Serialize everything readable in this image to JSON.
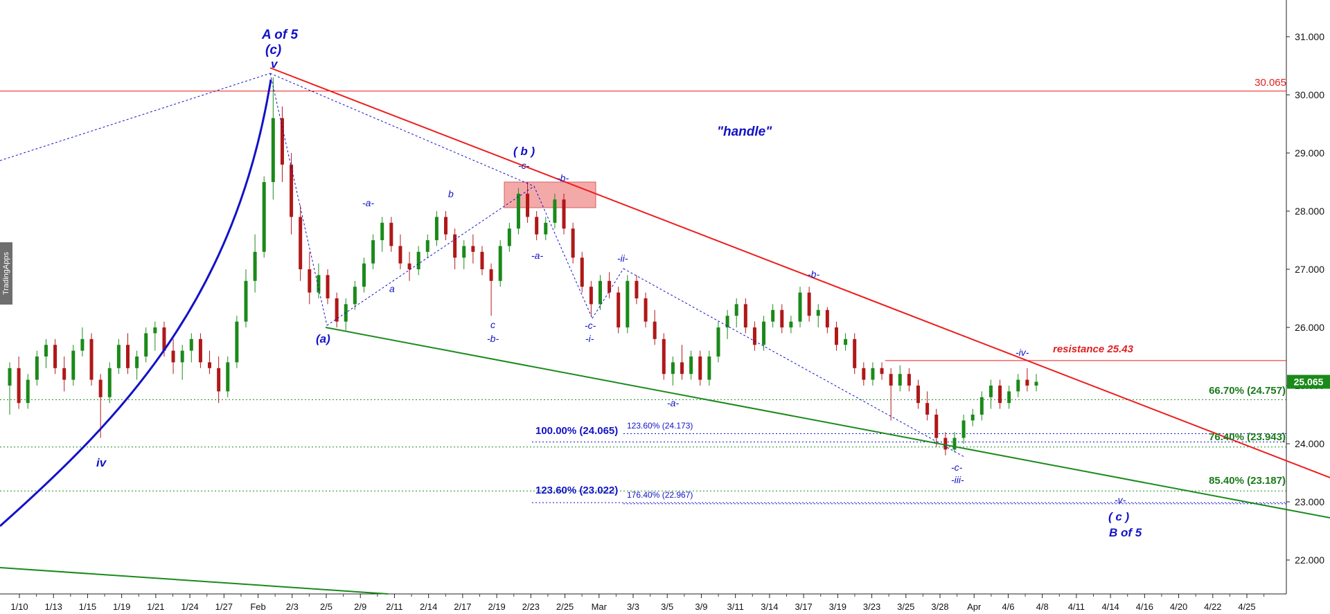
{
  "chart_data": {
    "type": "candlestick",
    "y_ticks": [
      "31.000",
      "30.000",
      "29.000",
      "28.000",
      "27.000",
      "26.000",
      "25.000",
      "24.000",
      "23.000",
      "22.000"
    ],
    "ylim": [
      21.4,
      31.7
    ],
    "x_ticks": [
      "1/10",
      "1/13",
      "1/15",
      "1/19",
      "1/21",
      "1/24",
      "1/27",
      "Feb",
      "2/3",
      "2/5",
      "2/9",
      "2/11",
      "2/14",
      "2/17",
      "2/19",
      "2/23",
      "2/25",
      "Mar",
      "3/3",
      "3/5",
      "3/9",
      "3/11",
      "3/14",
      "3/17",
      "3/19",
      "3/23",
      "3/25",
      "3/28",
      "Apr",
      "4/6",
      "4/8",
      "4/11",
      "4/14",
      "4/16",
      "4/20",
      "4/22",
      "4/25"
    ],
    "last_price": "25.065",
    "last_price_value": 25.065,
    "candles": [
      {
        "o": 25.0,
        "h": 25.4,
        "l": 24.5,
        "c": 25.3
      },
      {
        "o": 25.3,
        "h": 25.5,
        "l": 24.6,
        "c": 24.7
      },
      {
        "o": 24.7,
        "h": 25.2,
        "l": 24.6,
        "c": 25.1
      },
      {
        "o": 25.1,
        "h": 25.6,
        "l": 25.0,
        "c": 25.5
      },
      {
        "o": 25.5,
        "h": 25.8,
        "l": 25.3,
        "c": 25.7
      },
      {
        "o": 25.7,
        "h": 25.8,
        "l": 25.2,
        "c": 25.3
      },
      {
        "o": 25.3,
        "h": 25.5,
        "l": 24.9,
        "c": 25.1
      },
      {
        "o": 25.1,
        "h": 25.7,
        "l": 25.0,
        "c": 25.6
      },
      {
        "o": 25.6,
        "h": 26.0,
        "l": 25.5,
        "c": 25.8
      },
      {
        "o": 25.8,
        "h": 25.9,
        "l": 25.0,
        "c": 25.1
      },
      {
        "o": 25.1,
        "h": 25.2,
        "l": 24.1,
        "c": 24.8
      },
      {
        "o": 24.8,
        "h": 25.4,
        "l": 24.7,
        "c": 25.3
      },
      {
        "o": 25.3,
        "h": 25.8,
        "l": 25.2,
        "c": 25.7
      },
      {
        "o": 25.7,
        "h": 25.9,
        "l": 25.2,
        "c": 25.3
      },
      {
        "o": 25.3,
        "h": 25.6,
        "l": 25.1,
        "c": 25.5
      },
      {
        "o": 25.5,
        "h": 26.0,
        "l": 25.4,
        "c": 25.9
      },
      {
        "o": 25.9,
        "h": 26.1,
        "l": 25.6,
        "c": 26.0
      },
      {
        "o": 26.0,
        "h": 26.1,
        "l": 25.5,
        "c": 25.6
      },
      {
        "o": 25.6,
        "h": 25.8,
        "l": 25.2,
        "c": 25.4
      },
      {
        "o": 25.4,
        "h": 25.7,
        "l": 25.1,
        "c": 25.6
      },
      {
        "o": 25.6,
        "h": 25.9,
        "l": 25.4,
        "c": 25.8
      },
      {
        "o": 25.8,
        "h": 25.9,
        "l": 25.3,
        "c": 25.4
      },
      {
        "o": 25.4,
        "h": 25.6,
        "l": 25.2,
        "c": 25.3
      },
      {
        "o": 25.3,
        "h": 25.5,
        "l": 24.7,
        "c": 24.9
      },
      {
        "o": 24.9,
        "h": 25.5,
        "l": 24.8,
        "c": 25.4
      },
      {
        "o": 25.4,
        "h": 26.2,
        "l": 25.3,
        "c": 26.1
      },
      {
        "o": 26.1,
        "h": 27.0,
        "l": 26.0,
        "c": 26.8
      },
      {
        "o": 26.8,
        "h": 27.6,
        "l": 26.6,
        "c": 27.3
      },
      {
        "o": 27.3,
        "h": 28.6,
        "l": 27.2,
        "c": 28.5
      },
      {
        "o": 28.5,
        "h": 30.3,
        "l": 28.2,
        "c": 29.6
      },
      {
        "o": 29.6,
        "h": 29.8,
        "l": 28.5,
        "c": 28.8
      },
      {
        "o": 28.8,
        "h": 29.0,
        "l": 27.6,
        "c": 27.9
      },
      {
        "o": 27.9,
        "h": 28.1,
        "l": 26.8,
        "c": 27.0
      },
      {
        "o": 27.0,
        "h": 27.3,
        "l": 26.4,
        "c": 26.6
      },
      {
        "o": 26.6,
        "h": 27.1,
        "l": 26.5,
        "c": 26.9
      },
      {
        "o": 26.9,
        "h": 27.0,
        "l": 26.4,
        "c": 26.5
      },
      {
        "o": 26.5,
        "h": 26.6,
        "l": 26.0,
        "c": 26.1
      },
      {
        "o": 26.1,
        "h": 26.5,
        "l": 25.95,
        "c": 26.4
      },
      {
        "o": 26.4,
        "h": 26.8,
        "l": 26.3,
        "c": 26.7
      },
      {
        "o": 26.7,
        "h": 27.2,
        "l": 26.6,
        "c": 27.1
      },
      {
        "o": 27.1,
        "h": 27.6,
        "l": 27.0,
        "c": 27.5
      },
      {
        "o": 27.5,
        "h": 27.9,
        "l": 27.3,
        "c": 27.8
      },
      {
        "o": 27.8,
        "h": 27.9,
        "l": 27.3,
        "c": 27.4
      },
      {
        "o": 27.4,
        "h": 27.6,
        "l": 27.0,
        "c": 27.1
      },
      {
        "o": 27.1,
        "h": 27.3,
        "l": 26.8,
        "c": 27.0
      },
      {
        "o": 27.0,
        "h": 27.4,
        "l": 26.9,
        "c": 27.3
      },
      {
        "o": 27.3,
        "h": 27.6,
        "l": 27.2,
        "c": 27.5
      },
      {
        "o": 27.5,
        "h": 28.0,
        "l": 27.4,
        "c": 27.9
      },
      {
        "o": 27.9,
        "h": 28.0,
        "l": 27.5,
        "c": 27.6
      },
      {
        "o": 27.6,
        "h": 27.7,
        "l": 27.0,
        "c": 27.2
      },
      {
        "o": 27.2,
        "h": 27.5,
        "l": 27.0,
        "c": 27.4
      },
      {
        "o": 27.4,
        "h": 27.6,
        "l": 27.1,
        "c": 27.3
      },
      {
        "o": 27.3,
        "h": 27.4,
        "l": 26.9,
        "c": 27.0
      },
      {
        "o": 27.0,
        "h": 27.1,
        "l": 26.2,
        "c": 26.8
      },
      {
        "o": 26.8,
        "h": 27.5,
        "l": 26.7,
        "c": 27.4
      },
      {
        "o": 27.4,
        "h": 27.8,
        "l": 27.3,
        "c": 27.7
      },
      {
        "o": 27.7,
        "h": 28.4,
        "l": 27.6,
        "c": 28.3
      },
      {
        "o": 28.3,
        "h": 28.5,
        "l": 27.8,
        "c": 27.9
      },
      {
        "o": 27.9,
        "h": 28.0,
        "l": 27.5,
        "c": 27.6
      },
      {
        "o": 27.6,
        "h": 27.9,
        "l": 27.5,
        "c": 27.8
      },
      {
        "o": 27.8,
        "h": 28.3,
        "l": 27.7,
        "c": 28.2
      },
      {
        "o": 28.2,
        "h": 28.3,
        "l": 27.6,
        "c": 27.7
      },
      {
        "o": 27.7,
        "h": 27.8,
        "l": 27.1,
        "c": 27.2
      },
      {
        "o": 27.2,
        "h": 27.3,
        "l": 26.6,
        "c": 26.7
      },
      {
        "o": 26.7,
        "h": 26.8,
        "l": 26.2,
        "c": 26.4
      },
      {
        "o": 26.4,
        "h": 26.9,
        "l": 26.3,
        "c": 26.8
      },
      {
        "o": 26.8,
        "h": 26.95,
        "l": 26.5,
        "c": 26.6
      },
      {
        "o": 26.6,
        "h": 26.7,
        "l": 25.9,
        "c": 26.0
      },
      {
        "o": 26.0,
        "h": 26.9,
        "l": 25.9,
        "c": 26.8
      },
      {
        "o": 26.8,
        "h": 26.9,
        "l": 26.4,
        "c": 26.5
      },
      {
        "o": 26.5,
        "h": 26.6,
        "l": 26.0,
        "c": 26.1
      },
      {
        "o": 26.1,
        "h": 26.3,
        "l": 25.7,
        "c": 25.8
      },
      {
        "o": 25.8,
        "h": 25.9,
        "l": 25.1,
        "c": 25.2
      },
      {
        "o": 25.2,
        "h": 25.5,
        "l": 25.0,
        "c": 25.4
      },
      {
        "o": 25.4,
        "h": 25.7,
        "l": 25.1,
        "c": 25.2
      },
      {
        "o": 25.2,
        "h": 25.6,
        "l": 25.1,
        "c": 25.5
      },
      {
        "o": 25.5,
        "h": 25.6,
        "l": 25.0,
        "c": 25.1
      },
      {
        "o": 25.1,
        "h": 25.6,
        "l": 25.0,
        "c": 25.5
      },
      {
        "o": 25.5,
        "h": 26.1,
        "l": 25.4,
        "c": 26.0
      },
      {
        "o": 26.0,
        "h": 26.3,
        "l": 25.8,
        "c": 26.2
      },
      {
        "o": 26.2,
        "h": 26.5,
        "l": 26.0,
        "c": 26.4
      },
      {
        "o": 26.4,
        "h": 26.5,
        "l": 25.9,
        "c": 26.0
      },
      {
        "o": 26.0,
        "h": 26.1,
        "l": 25.6,
        "c": 25.7
      },
      {
        "o": 25.7,
        "h": 26.2,
        "l": 25.6,
        "c": 26.1
      },
      {
        "o": 26.1,
        "h": 26.4,
        "l": 26.0,
        "c": 26.3
      },
      {
        "o": 26.3,
        "h": 26.4,
        "l": 25.9,
        "c": 26.0
      },
      {
        "o": 26.0,
        "h": 26.2,
        "l": 25.9,
        "c": 26.1
      },
      {
        "o": 26.1,
        "h": 26.7,
        "l": 26.0,
        "c": 26.6
      },
      {
        "o": 26.6,
        "h": 26.7,
        "l": 26.1,
        "c": 26.2
      },
      {
        "o": 26.2,
        "h": 26.4,
        "l": 26.0,
        "c": 26.3
      },
      {
        "o": 26.3,
        "h": 26.35,
        "l": 25.9,
        "c": 26.0
      },
      {
        "o": 26.0,
        "h": 26.1,
        "l": 25.6,
        "c": 25.7
      },
      {
        "o": 25.7,
        "h": 25.9,
        "l": 25.6,
        "c": 25.8
      },
      {
        "o": 25.8,
        "h": 25.9,
        "l": 25.2,
        "c": 25.3
      },
      {
        "o": 25.3,
        "h": 25.4,
        "l": 25.0,
        "c": 25.1
      },
      {
        "o": 25.1,
        "h": 25.4,
        "l": 25.0,
        "c": 25.3
      },
      {
        "o": 25.3,
        "h": 25.4,
        "l": 25.1,
        "c": 25.2
      },
      {
        "o": 25.2,
        "h": 25.3,
        "l": 24.4,
        "c": 25.0
      },
      {
        "o": 25.0,
        "h": 25.35,
        "l": 24.9,
        "c": 25.2
      },
      {
        "o": 25.2,
        "h": 25.3,
        "l": 24.9,
        "c": 25.0
      },
      {
        "o": 25.0,
        "h": 25.1,
        "l": 24.6,
        "c": 24.7
      },
      {
        "o": 24.7,
        "h": 24.9,
        "l": 24.4,
        "c": 24.5
      },
      {
        "o": 24.5,
        "h": 24.6,
        "l": 23.95,
        "c": 24.1
      },
      {
        "o": 24.1,
        "h": 24.2,
        "l": 23.8,
        "c": 23.9
      },
      {
        "o": 23.9,
        "h": 24.2,
        "l": 23.85,
        "c": 24.1
      },
      {
        "o": 24.1,
        "h": 24.5,
        "l": 24.0,
        "c": 24.4
      },
      {
        "o": 24.4,
        "h": 24.6,
        "l": 24.3,
        "c": 24.5
      },
      {
        "o": 24.5,
        "h": 24.9,
        "l": 24.4,
        "c": 24.8
      },
      {
        "o": 24.8,
        "h": 25.1,
        "l": 24.6,
        "c": 25.0
      },
      {
        "o": 25.0,
        "h": 25.1,
        "l": 24.6,
        "c": 24.7
      },
      {
        "o": 24.7,
        "h": 25.0,
        "l": 24.6,
        "c": 24.9
      },
      {
        "o": 24.9,
        "h": 25.2,
        "l": 24.8,
        "c": 25.1
      },
      {
        "o": 25.1,
        "h": 25.3,
        "l": 24.9,
        "c": 25.0
      },
      {
        "o": 25.0,
        "h": 25.2,
        "l": 24.9,
        "c": 25.065
      }
    ]
  },
  "levels": {
    "top_level_label": "30.065",
    "top_level_value": 30.065,
    "resistance_label": "resistance 25.43",
    "resistance_value": 25.43,
    "fib_green": [
      {
        "label": "66.70% (24.757)",
        "value": 24.757
      },
      {
        "label": "76.40% (23.943)",
        "value": 23.943
      },
      {
        "label": "85.40% (23.187)",
        "value": 23.187
      }
    ],
    "fib_blue": [
      {
        "label": "100.00% (24.065)",
        "value": 24.065
      },
      {
        "label": "123.60% (23.022)",
        "value": 23.022
      }
    ],
    "fib_blue_small": [
      {
        "label": "123.60% (24.173)",
        "value": 24.173
      },
      {
        "label": "176.40% (22.967)",
        "value": 22.967
      }
    ]
  },
  "annotations": {
    "handle": "\"handle\"",
    "a_of_5": "A of 5",
    "c_paren": "(c)",
    "v_top": "v",
    "iv_left": "iv",
    "a_paren": "(a)",
    "b_paren": "( b )",
    "c_dash_b": "-c-",
    "b_dash_1": "-b-",
    "a_dash_1": "-a-",
    "a_lower": "a",
    "b_lower": "b",
    "c_lower": "c",
    "b_dash_2": "-b-",
    "a_dash_2": "-a-",
    "ii_dash": "-ii-",
    "c_dash_2": "-c-",
    "i_dash": "-i-",
    "b_dash_3": "-b-",
    "a_dash_3": "-a-",
    "c_dash_3": "-c-",
    "iii_dash": "-iii-",
    "iv_dash": "-iv-",
    "v_dash": "-v-",
    "c_paren_2": "( c )",
    "b_of_5": "B of 5"
  },
  "watermark": "TradingApps",
  "colors": {
    "up": "#1a8a1a",
    "down": "#b01818",
    "red_line": "#ee1c1c",
    "green_line": "#1a8a1a",
    "blue": "#1212c8",
    "box": "#f08c8c"
  }
}
